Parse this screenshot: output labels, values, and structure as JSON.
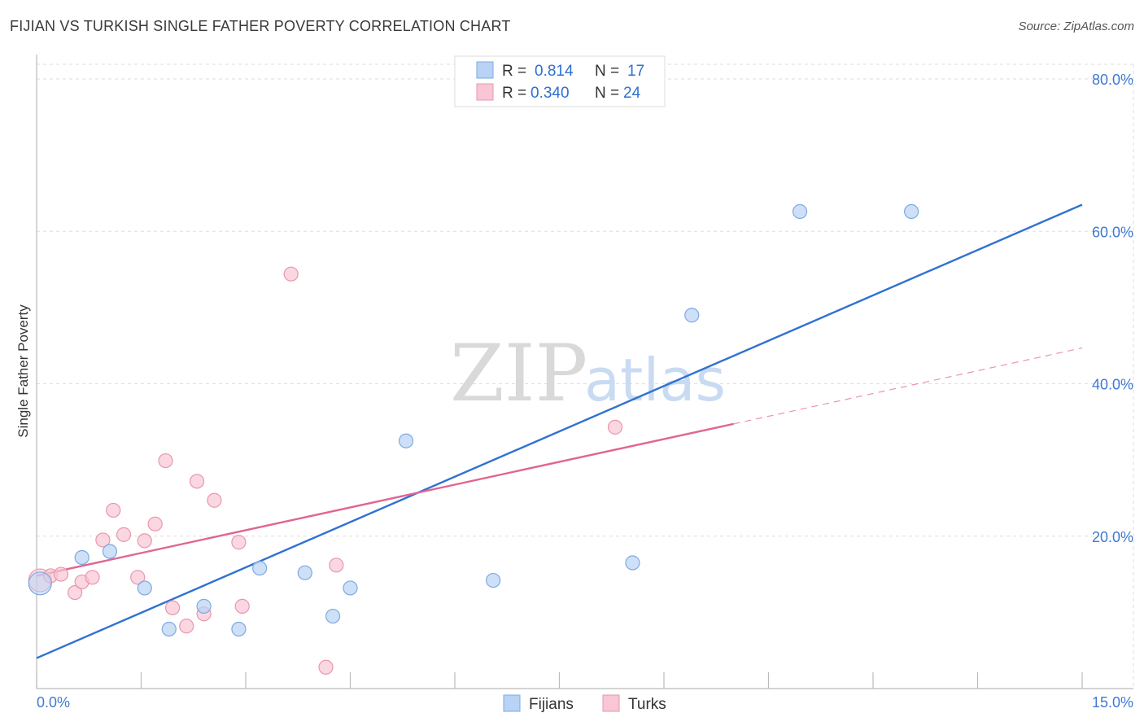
{
  "header": {
    "title": "FIJIAN VS TURKISH SINGLE FATHER POVERTY CORRELATION CHART",
    "source": "Source: ZipAtlas.com"
  },
  "watermark": {
    "zip": "ZIP",
    "atlas": "atlas"
  },
  "colors": {
    "fijians_fill": "#b8d3f5",
    "fijians_stroke": "#7ea9df",
    "fijians_line": "#2f72d0",
    "turks_fill": "#f8c6d4",
    "turks_stroke": "#e996ae",
    "turks_line": "#e0668f",
    "grid": "#dddddd",
    "axis_text": "#3f7ad1"
  },
  "chart_data": {
    "type": "scatter",
    "title": "FIJIAN VS TURKISH SINGLE FATHER POVERTY CORRELATION CHART",
    "xlabel": "",
    "ylabel": "Single Father Poverty",
    "xlim": [
      0,
      15
    ],
    "ylim": [
      0,
      80
    ],
    "x_tick_labels": [
      "0.0%",
      "15.0%"
    ],
    "y_ticks": [
      20,
      40,
      60,
      80
    ],
    "y_tick_labels": [
      "20.0%",
      "40.0%",
      "60.0%",
      "80.0%"
    ],
    "grid": true,
    "legend_position": "top-center",
    "legend": [
      {
        "r_label": "R =",
        "r_value": "0.814",
        "n_label": "N =",
        "n_value": "17"
      },
      {
        "r_label": "R =",
        "r_value": "0.340",
        "n_label": "N =",
        "n_value": "24"
      }
    ],
    "bottom_legend": [
      "Fijians",
      "Turks"
    ],
    "series": [
      {
        "name": "Fijians",
        "points": [
          [
            0.05,
            13.8
          ],
          [
            0.65,
            17.2
          ],
          [
            1.05,
            18.0
          ],
          [
            1.55,
            13.2
          ],
          [
            1.9,
            7.8
          ],
          [
            2.4,
            10.8
          ],
          [
            2.9,
            7.8
          ],
          [
            3.2,
            15.8
          ],
          [
            3.85,
            15.2
          ],
          [
            4.5,
            13.2
          ],
          [
            4.25,
            9.5
          ],
          [
            5.3,
            32.5
          ],
          [
            6.55,
            14.2
          ],
          [
            8.55,
            16.5
          ],
          [
            9.4,
            49.0
          ],
          [
            10.95,
            62.6
          ],
          [
            12.55,
            62.6
          ]
        ],
        "trend": {
          "x0": 0,
          "y0": 4.0,
          "x1": 15,
          "y1": 63.5,
          "dashed_from": null
        }
      },
      {
        "name": "Turks",
        "points": [
          [
            0.05,
            14.2
          ],
          [
            0.2,
            14.8
          ],
          [
            0.35,
            15.0
          ],
          [
            0.55,
            12.6
          ],
          [
            0.65,
            14.0
          ],
          [
            0.8,
            14.6
          ],
          [
            0.95,
            19.5
          ],
          [
            1.1,
            23.4
          ],
          [
            1.25,
            20.2
          ],
          [
            1.45,
            14.6
          ],
          [
            1.55,
            19.4
          ],
          [
            1.7,
            21.6
          ],
          [
            1.85,
            29.9
          ],
          [
            1.95,
            10.6
          ],
          [
            2.15,
            8.2
          ],
          [
            2.3,
            27.2
          ],
          [
            2.4,
            9.8
          ],
          [
            2.55,
            24.7
          ],
          [
            2.9,
            19.2
          ],
          [
            2.95,
            10.8
          ],
          [
            3.65,
            54.4
          ],
          [
            4.15,
            2.8
          ],
          [
            4.3,
            16.2
          ],
          [
            8.3,
            34.3
          ]
        ],
        "trend": {
          "x0": 0,
          "y0": 14.8,
          "x1": 15,
          "y1": 44.7,
          "dashed_from": 10
        }
      }
    ]
  }
}
